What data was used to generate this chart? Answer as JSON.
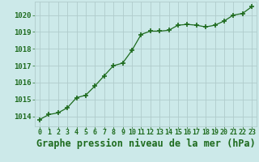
{
  "x": [
    0,
    1,
    2,
    3,
    4,
    5,
    6,
    7,
    8,
    9,
    10,
    11,
    12,
    13,
    14,
    15,
    16,
    17,
    18,
    19,
    20,
    21,
    22,
    23
  ],
  "y": [
    1013.8,
    1014.1,
    1014.2,
    1014.5,
    1015.1,
    1015.25,
    1015.8,
    1016.4,
    1017.0,
    1017.15,
    1017.9,
    1018.85,
    1019.05,
    1019.05,
    1019.1,
    1019.4,
    1019.45,
    1019.4,
    1019.3,
    1019.4,
    1019.65,
    1020.0,
    1020.1,
    1020.5
  ],
  "line_color": "#1e6b1e",
  "marker": "+",
  "marker_size": 5,
  "marker_lw": 1.2,
  "line_width": 0.9,
  "bg_color": "#cce9e9",
  "grid_color": "#b0cccc",
  "ylabel_ticks": [
    1014,
    1015,
    1016,
    1017,
    1018,
    1019,
    1020
  ],
  "xticks": [
    0,
    1,
    2,
    3,
    4,
    5,
    6,
    7,
    8,
    9,
    10,
    11,
    12,
    13,
    14,
    15,
    16,
    17,
    18,
    19,
    20,
    21,
    22,
    23
  ],
  "ylim": [
    1013.4,
    1020.8
  ],
  "xlim": [
    -0.5,
    23.5
  ],
  "xlabel": "Graphe pression niveau de la mer (hPa)",
  "xlabel_color": "#1e6b1e",
  "tick_color": "#1e6b1e",
  "ytick_fontsize": 6.5,
  "xtick_fontsize": 6,
  "xlabel_fontsize": 8.5
}
